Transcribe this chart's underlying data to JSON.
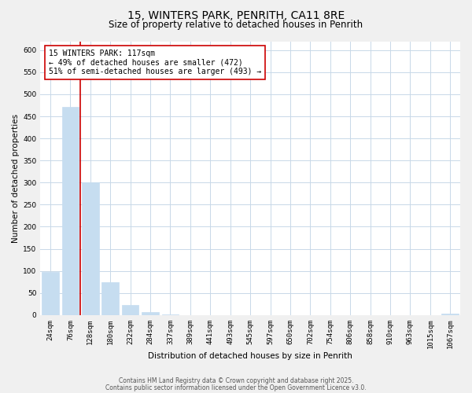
{
  "title": "15, WINTERS PARK, PENRITH, CA11 8RE",
  "subtitle": "Size of property relative to detached houses in Penrith",
  "xlabel": "Distribution of detached houses by size in Penrith",
  "ylabel": "Number of detached properties",
  "bar_labels": [
    "24sqm",
    "76sqm",
    "128sqm",
    "180sqm",
    "232sqm",
    "284sqm",
    "337sqm",
    "389sqm",
    "441sqm",
    "493sqm",
    "545sqm",
    "597sqm",
    "650sqm",
    "702sqm",
    "754sqm",
    "806sqm",
    "858sqm",
    "910sqm",
    "963sqm",
    "1015sqm",
    "1067sqm"
  ],
  "bar_values": [
    97,
    472,
    300,
    75,
    22,
    7,
    2,
    0,
    0,
    0,
    0,
    0,
    0,
    0,
    0,
    0,
    0,
    0,
    0,
    0,
    3
  ],
  "bar_color": "#c6ddf0",
  "bar_edge_color": "#c6ddf0",
  "vline_x_idx": 1.5,
  "vline_color": "#cc0000",
  "ylim": [
    0,
    620
  ],
  "yticks": [
    0,
    50,
    100,
    150,
    200,
    250,
    300,
    350,
    400,
    450,
    500,
    550,
    600
  ],
  "annotation_line1": "15 WINTERS PARK: 117sqm",
  "annotation_line2": "← 49% of detached houses are smaller (472)",
  "annotation_line3": "51% of semi-detached houses are larger (493) →",
  "annotation_box_facecolor": "#ffffff",
  "annotation_box_edgecolor": "#cc0000",
  "footer1": "Contains HM Land Registry data © Crown copyright and database right 2025.",
  "footer2": "Contains public sector information licensed under the Open Government Licence v3.0.",
  "fig_facecolor": "#f0f0f0",
  "plot_facecolor": "#ffffff",
  "grid_color": "#c8d8e8",
  "title_fontsize": 10,
  "subtitle_fontsize": 8.5,
  "axis_label_fontsize": 7.5,
  "tick_fontsize": 6.5,
  "annotation_fontsize": 7,
  "footer_fontsize": 5.5
}
